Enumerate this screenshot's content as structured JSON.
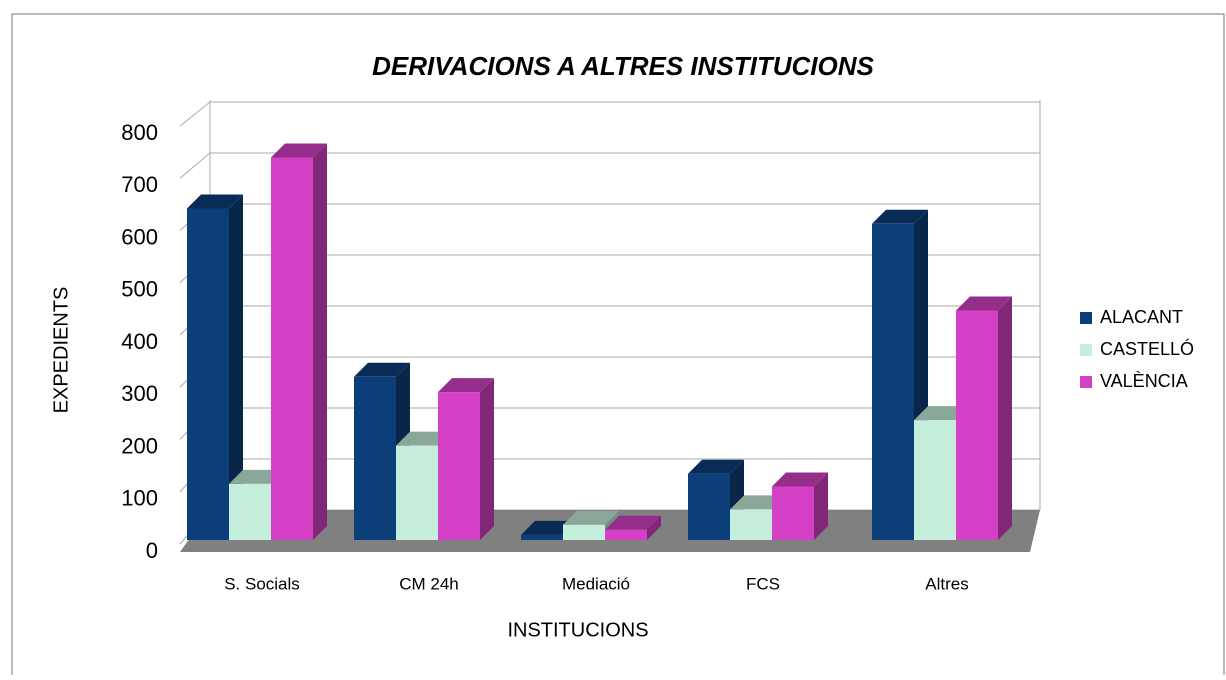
{
  "chart_data": {
    "type": "bar3d",
    "title": "DERIVACIONS A ALTRES INSTITUCIONS",
    "x_label": "INSTITUCIONS",
    "y_label": "EXPEDIENTS",
    "categories": [
      "S. Socials",
      "CM 24h",
      "Mediació",
      "FCS",
      "Altres"
    ],
    "series": [
      {
        "name": "ALACANT",
        "color": "#0c3f7a",
        "values": [
          650,
          320,
          10,
          130,
          620
        ]
      },
      {
        "name": "CASTELLÓ",
        "color": "#c5eedc",
        "values": [
          110,
          185,
          30,
          60,
          235
        ]
      },
      {
        "name": "VALÈNCIA",
        "color": "#d541c6",
        "values": [
          750,
          290,
          20,
          105,
          450
        ]
      }
    ],
    "ylim": [
      0,
      800
    ],
    "yticks": [
      0,
      100,
      200,
      300,
      400,
      500,
      600,
      700,
      800
    ],
    "grid": true,
    "legend": "right"
  }
}
